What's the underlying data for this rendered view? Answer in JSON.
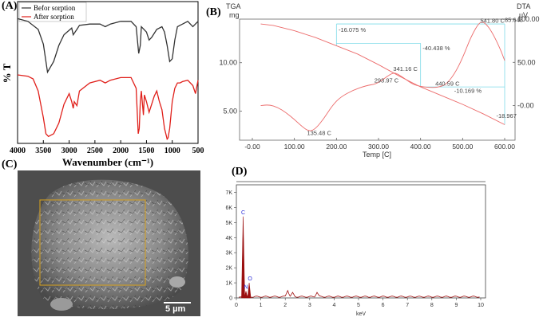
{
  "panels": [
    {
      "id": "A",
      "label": "(A)"
    },
    {
      "id": "B",
      "label": "(B)"
    },
    {
      "id": "C",
      "label": "(C)"
    },
    {
      "id": "D",
      "label": "(D)"
    }
  ],
  "sem": {
    "scale_bar": "5 µm"
  },
  "chart_data": [
    {
      "type": "line",
      "panel": "A",
      "xlabel": "Wavenumber (cm⁻¹)",
      "ylabel": "% T",
      "xlim": [
        4000,
        500
      ],
      "xticks": [
        "4000",
        "3500",
        "3000",
        "2500",
        "2000",
        "1500",
        "1000",
        "500"
      ],
      "legend": "top-left",
      "series": [
        {
          "name": "Befor sorption",
          "color": "#333333",
          "x": [
            4000,
            3800,
            3600,
            3500,
            3420,
            3300,
            3200,
            3100,
            2950,
            2920,
            2850,
            2800,
            2600,
            2400,
            2300,
            2200,
            2000,
            1800,
            1700,
            1650,
            1620,
            1600,
            1500,
            1450,
            1400,
            1300,
            1200,
            1150,
            1100,
            1050,
            1000,
            950,
            900,
            850,
            800,
            700,
            600,
            500
          ],
          "y": [
            0.92,
            0.9,
            0.84,
            0.73,
            0.52,
            0.6,
            0.72,
            0.8,
            0.85,
            0.8,
            0.84,
            0.87,
            0.88,
            0.88,
            0.86,
            0.88,
            0.9,
            0.9,
            0.86,
            0.66,
            0.72,
            0.86,
            0.82,
            0.76,
            0.78,
            0.84,
            0.86,
            0.82,
            0.72,
            0.6,
            0.62,
            0.76,
            0.86,
            0.87,
            0.88,
            0.9,
            0.86,
            0.9
          ]
        },
        {
          "name": "After sorption",
          "color": "#e0201b",
          "x": [
            4000,
            3800,
            3700,
            3600,
            3500,
            3450,
            3400,
            3350,
            3300,
            3200,
            3100,
            3000,
            2950,
            2920,
            2900,
            2850,
            2800,
            2600,
            2400,
            2300,
            2200,
            2000,
            1800,
            1700,
            1660,
            1640,
            1620,
            1600,
            1560,
            1540,
            1500,
            1450,
            1400,
            1350,
            1300,
            1250,
            1200,
            1150,
            1100,
            1080,
            1050,
            1000,
            950,
            900,
            850,
            800,
            700,
            600,
            550,
            500
          ],
          "y": [
            0.5,
            0.49,
            0.47,
            0.38,
            0.18,
            0.06,
            0.04,
            0.05,
            0.06,
            0.14,
            0.28,
            0.36,
            0.3,
            0.25,
            0.3,
            0.27,
            0.38,
            0.44,
            0.46,
            0.44,
            0.46,
            0.48,
            0.48,
            0.4,
            0.06,
            0.1,
            0.3,
            0.38,
            0.2,
            0.35,
            0.3,
            0.22,
            0.28,
            0.34,
            0.38,
            0.3,
            0.24,
            0.1,
            0.02,
            0.03,
            0.1,
            0.3,
            0.4,
            0.44,
            0.44,
            0.45,
            0.46,
            0.42,
            0.36,
            0.46
          ]
        }
      ]
    },
    {
      "type": "line",
      "panel": "B",
      "ylabel_left": "TGA",
      "yunit_left": "mg",
      "ylabel_right": "DTA",
      "yunit_right": "uV",
      "xlabel": "Temp  [C]",
      "xlim": [
        0,
        650
      ],
      "xticks": [
        "-0.00",
        "100.00",
        "200.00",
        "300.00",
        "400.00",
        "500.00",
        "600.00"
      ],
      "ylim_left": [
        2.0,
        14.5
      ],
      "yticks_left": [
        "5.00",
        "10.00"
      ],
      "ylim_right": [
        -40,
        100
      ],
      "yticks_right": [
        "-0.00",
        "50.00",
        "100.00"
      ],
      "series": [
        {
          "name": "TGA",
          "color": "#ec6b6b",
          "x": [
            20,
            50,
            100,
            150,
            200,
            250,
            300,
            350,
            400,
            450,
            500,
            550,
            600
          ],
          "y": [
            14.0,
            13.85,
            13.3,
            12.6,
            11.75,
            10.9,
            9.8,
            8.6,
            7.5,
            6.6,
            5.7,
            4.7,
            3.6
          ]
        },
        {
          "name": "DTA",
          "color": "#ec6b6b",
          "x": [
            20,
            40,
            60,
            80,
            100,
            120,
            135.48,
            150,
            170,
            190,
            210,
            240,
            270,
            293.97,
            310,
            330,
            341.16,
            360,
            380,
            400,
            420,
            440.59,
            460,
            480,
            500,
            520,
            541.8,
            555,
            570,
            590,
            600
          ],
          "y": [
            0,
            1,
            -2,
            -8,
            -16,
            -25,
            -30,
            -27,
            -15,
            0,
            10,
            18,
            23,
            25,
            30,
            37,
            38,
            32,
            25,
            22,
            21,
            21,
            24,
            36,
            55,
            80,
            98,
            95,
            85,
            65,
            52
          ]
        }
      ],
      "annotations": [
        "-16.075  %",
        "-40.438  %",
        "-10.169  %",
        "-18.967",
        "541.80  C",
        "85.648",
        "341.16  C",
        "293.97  C",
        "440.59  C",
        "135.48  C"
      ]
    },
    {
      "type": "bar",
      "panel": "D",
      "xlabel": "keV",
      "xlim": [
        0,
        10.5
      ],
      "xticks": [
        "0",
        "1",
        "2",
        "3",
        "4",
        "5",
        "6",
        "7",
        "8",
        "9",
        "10"
      ],
      "ylim": [
        0,
        7.5
      ],
      "yticks": [
        "0",
        "1K",
        "2K",
        "3K",
        "4K",
        "5K",
        "6K",
        "7K"
      ],
      "peak_labels": [
        "C",
        "O",
        "N"
      ],
      "peaks": [
        {
          "x": 0.277,
          "y": 5.4,
          "label": "C"
        },
        {
          "x": 0.392,
          "y": 0.45,
          "label": "N"
        },
        {
          "x": 0.525,
          "y": 1.0,
          "label": "O"
        }
      ]
    }
  ]
}
